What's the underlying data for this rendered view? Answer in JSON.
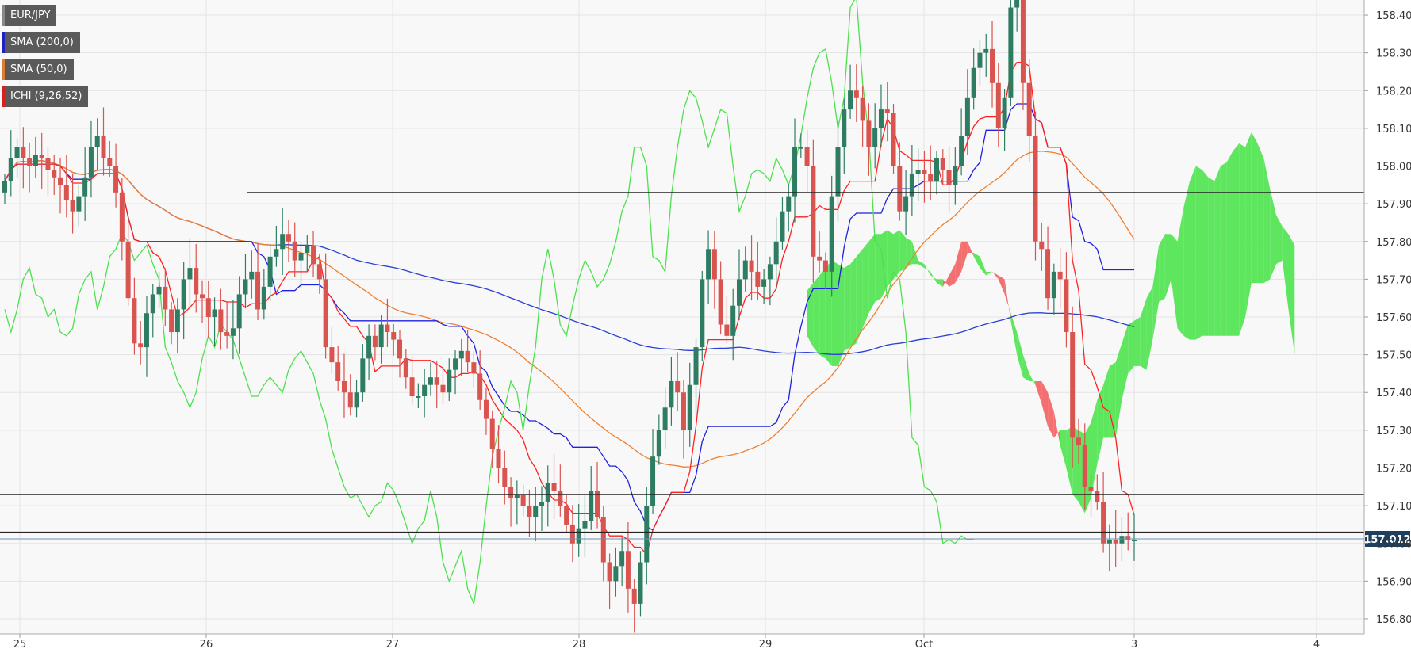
{
  "chart_data": {
    "type": "candlestick",
    "symbol": "EUR/JPY",
    "indicators": [
      {
        "label": "SMA (200,0)",
        "color": "#2020c8"
      },
      {
        "label": "SMA (50,0)",
        "color": "#e07a30"
      },
      {
        "label": "ICHI (9,26,52)",
        "color": "#d42020"
      }
    ],
    "x_ticks": [
      "25",
      "26",
      "27",
      "28",
      "29",
      "Oct",
      "3",
      "4"
    ],
    "y_ticks": [
      "158.400",
      "158.300",
      "158.200",
      "158.100",
      "158.000",
      "157.900",
      "157.800",
      "157.700",
      "157.600",
      "157.500",
      "157.400",
      "157.300",
      "157.200",
      "157.100",
      "157.000",
      "156.900",
      "156.800"
    ],
    "ylim": [
      156.76,
      158.44
    ],
    "current_price": "157.012",
    "horizontal_lines": [
      157.93,
      157.13,
      157.03
    ],
    "colors": {
      "up": "#2e7d63",
      "down": "#d9534f",
      "kumo_bull": "#5ee65e",
      "kumo_bear": "#f47070",
      "chikou": "#4ee04e",
      "tenkan": "#ff2020",
      "kijun": "#2020e0",
      "sma50": "#f08030",
      "sma200": "#2a3fd6"
    },
    "series": {
      "closes": [
        157.96,
        158.02,
        158.05,
        158.02,
        158.0,
        158.03,
        158.02,
        157.99,
        157.97,
        157.95,
        157.91,
        157.88,
        157.92,
        157.97,
        158.05,
        158.08,
        158.02,
        158.0,
        157.93,
        157.8,
        157.65,
        157.53,
        157.52,
        157.61,
        157.66,
        157.68,
        157.62,
        157.56,
        157.62,
        157.7,
        157.73,
        157.66,
        157.65,
        157.6,
        157.62,
        157.56,
        157.55,
        157.57,
        157.66,
        157.7,
        157.72,
        157.62,
        157.68,
        157.76,
        157.78,
        157.82,
        157.8,
        157.75,
        157.77,
        157.79,
        157.74,
        157.7,
        157.52,
        157.48,
        157.43,
        157.4,
        157.36,
        157.4,
        157.49,
        157.55,
        157.52,
        157.58,
        157.56,
        157.54,
        157.49,
        157.44,
        157.39,
        157.39,
        157.42,
        157.44,
        157.42,
        157.4,
        157.46,
        157.49,
        157.51,
        157.48,
        157.45,
        157.38,
        157.33,
        157.25,
        157.2,
        157.15,
        157.12,
        157.13,
        157.1,
        157.07,
        157.1,
        157.11,
        157.16,
        157.14,
        157.1,
        157.05,
        157.0,
        157.04,
        157.06,
        157.14,
        157.07,
        156.95,
        156.9,
        156.94,
        156.98,
        156.88,
        156.84,
        156.95,
        157.1,
        157.23,
        157.3,
        157.36,
        157.43,
        157.4,
        157.3,
        157.42,
        157.52,
        157.7,
        157.78,
        157.7,
        157.58,
        157.55,
        157.63,
        157.7,
        157.75,
        157.72,
        157.68,
        157.7,
        157.74,
        157.8,
        157.88,
        157.92,
        158.05,
        158.05,
        158.0,
        157.76,
        157.75,
        157.72,
        157.92,
        158.05,
        158.15,
        158.2,
        158.18,
        158.12,
        158.05,
        158.1,
        158.15,
        158.14,
        158.0,
        157.88,
        157.92,
        157.98,
        157.99,
        157.98,
        157.96,
        158.02,
        157.99,
        157.95,
        158.0,
        158.08,
        158.18,
        158.26,
        158.3,
        158.31,
        158.22,
        158.1,
        158.18,
        158.42,
        158.45,
        158.22,
        158.08,
        157.8,
        157.78,
        157.65,
        157.72,
        157.7,
        157.56,
        157.28,
        157.26,
        157.15,
        157.14,
        157.11,
        157.0,
        157.01,
        157.0,
        157.02,
        157.01,
        157.01
      ],
      "kumo_a": [
        157.67,
        157.69,
        157.71,
        157.73,
        157.75,
        157.74,
        157.73,
        157.74,
        157.76,
        157.78,
        157.8,
        157.82,
        157.82,
        157.83,
        157.82,
        157.83,
        157.81,
        157.8,
        157.75,
        157.74,
        157.71,
        157.7,
        157.7,
        157.68,
        157.69,
        157.72,
        157.77,
        157.77,
        157.76,
        157.72,
        157.72,
        157.7,
        157.66,
        157.61,
        157.56,
        157.5,
        157.45,
        157.42,
        157.37,
        157.31,
        157.28,
        157.3,
        157.3,
        157.31,
        157.3,
        157.29,
        157.32,
        157.38,
        157.42,
        157.47,
        157.48,
        157.53,
        157.58,
        157.59,
        157.6,
        157.65,
        157.68,
        157.79,
        157.82,
        157.82,
        157.8,
        157.89,
        157.96,
        158.0,
        157.99,
        157.97,
        157.96,
        158.0,
        158.01,
        158.04,
        158.06,
        158.05,
        158.09,
        158.06,
        158.02,
        157.94,
        157.87,
        157.84,
        157.82,
        157.79
      ],
      "kumo_b": [
        157.55,
        157.52,
        157.5,
        157.49,
        157.47,
        157.47,
        157.51,
        157.52,
        157.53,
        157.57,
        157.61,
        157.64,
        157.65,
        157.68,
        157.7,
        157.72,
        157.73,
        157.74,
        157.74,
        157.73,
        157.72,
        157.69,
        157.68,
        157.71,
        157.74,
        157.8,
        157.8,
        157.76,
        157.73,
        157.71,
        157.72,
        157.71,
        157.7,
        157.59,
        157.5,
        157.44,
        157.43,
        157.43,
        157.43,
        157.4,
        157.35,
        157.26,
        157.2,
        157.13,
        157.11,
        157.08,
        157.12,
        157.21,
        157.28,
        157.28,
        157.28,
        157.38,
        157.45,
        157.47,
        157.47,
        157.46,
        157.54,
        157.64,
        157.65,
        157.7,
        157.57,
        157.55,
        157.54,
        157.54,
        157.55,
        157.55,
        157.55,
        157.55,
        157.55,
        157.55,
        157.55,
        157.6,
        157.69,
        157.69,
        157.69,
        157.7,
        157.74,
        157.75,
        157.62,
        157.5
      ]
    }
  }
}
